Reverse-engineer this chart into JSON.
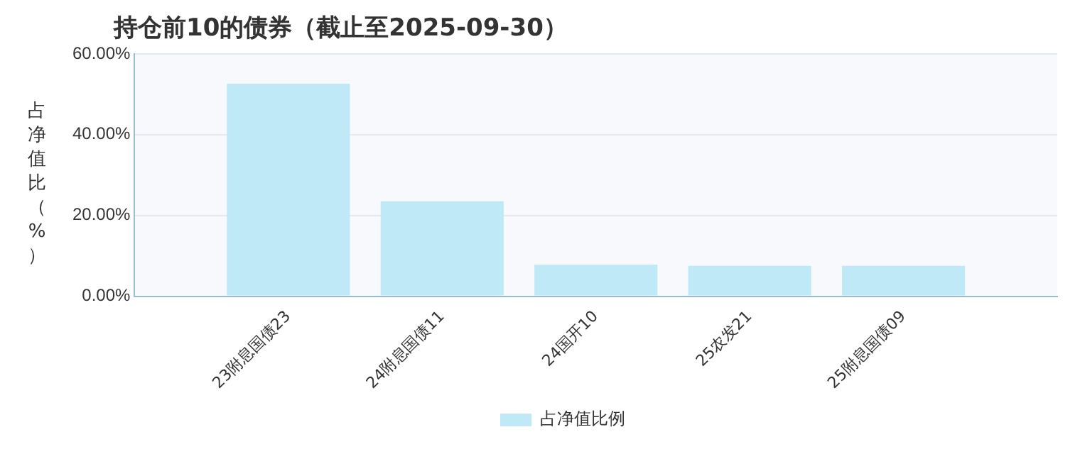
{
  "chart_data": {
    "type": "bar",
    "title": "持仓前10的债券（截止至2025-09-30）",
    "ylabel": "占净值比（%）",
    "categories": [
      "23附息国债23",
      "24附息国债11",
      "24国开10",
      "25农发21",
      "25附息国债09"
    ],
    "series": [
      {
        "name": "占净值比例",
        "color": "#bfe9f6",
        "values": [
          52.6,
          23.5,
          7.8,
          7.5,
          7.5
        ]
      }
    ],
    "ylim": [
      0,
      60
    ],
    "yticks": [
      {
        "value": 0,
        "label": "0.00%"
      },
      {
        "value": 20,
        "label": "20.00%"
      },
      {
        "value": 40,
        "label": "40.00%"
      },
      {
        "value": 60,
        "label": "60.00%"
      }
    ],
    "grid": "y",
    "legend": "bottom"
  }
}
